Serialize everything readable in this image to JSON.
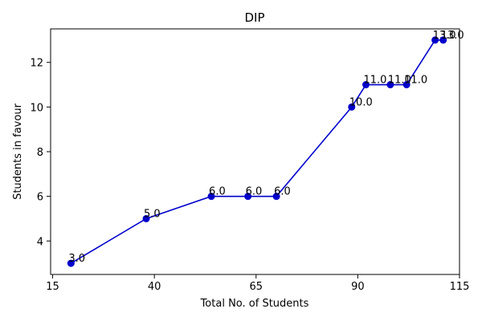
{
  "chart_data": {
    "type": "line",
    "title": "DIP",
    "xlabel": "Total No. of Students",
    "ylabel": "Students in favour",
    "xlim": [
      14.5,
      115
    ],
    "ylim": [
      2.5,
      13.5
    ],
    "xticks": [
      15,
      40,
      65,
      90,
      115
    ],
    "yticks": [
      4,
      6,
      8,
      10,
      12
    ],
    "grid": false,
    "series": [
      {
        "color": "#0000cc",
        "marker_color": "#0000cc",
        "x": [
          19.5,
          38,
          54,
          63,
          70,
          88.5,
          92,
          98,
          102,
          109,
          111
        ],
        "y": [
          3.0,
          5.0,
          6.0,
          6.0,
          6.0,
          10.0,
          11.0,
          11.0,
          11.0,
          13.0,
          13.0
        ],
        "labels": [
          "3.0",
          "5.0",
          "6.0",
          "6.0",
          "6.0",
          "10.0",
          "11.0",
          "11.0",
          "11.0",
          "13.0",
          "13.0"
        ]
      }
    ]
  }
}
